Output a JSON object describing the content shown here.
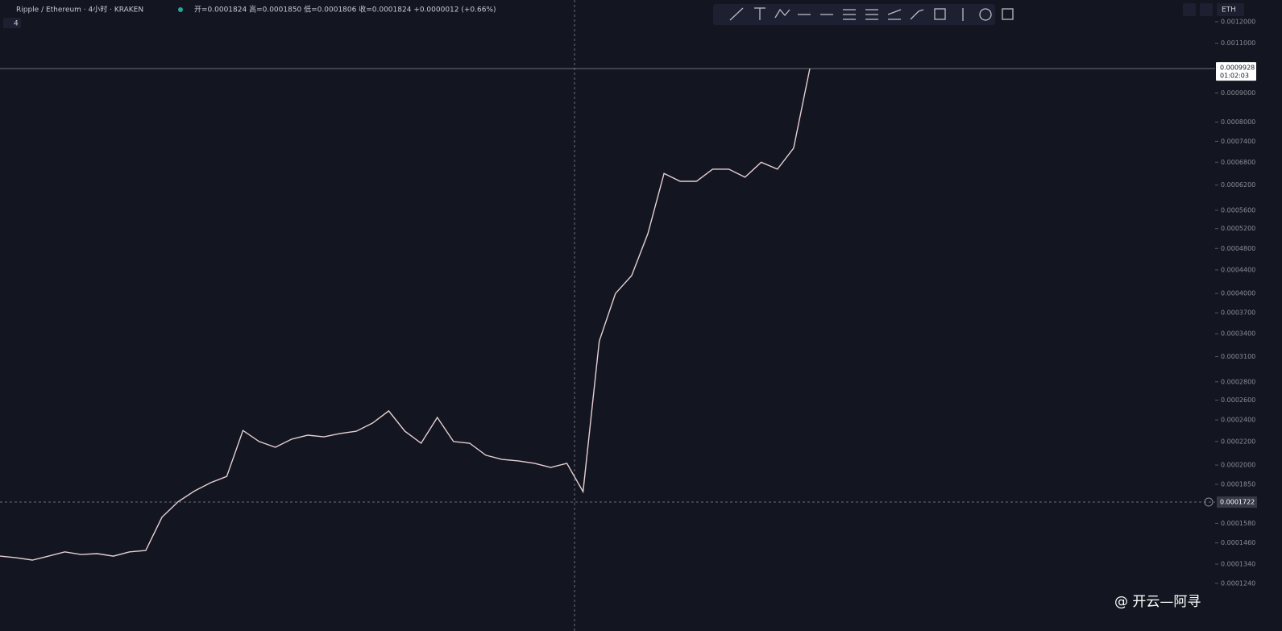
{
  "header": {
    "symbol": "Ripple / Ethereum · 4小时 · KRAKEN",
    "ohlc": "开=0.0001824 高=0.0001850 低=0.0001806 收=0.0001824 +0.0000012 (+0.66%)",
    "indicator": "4",
    "currency": "ETH"
  },
  "watermark": "@ 开云—阿寻",
  "chart_data": {
    "type": "line",
    "color": "#e6cfd3",
    "log_scale": true,
    "values": [
      0.0001384,
      0.0001375,
      0.0001362,
      0.0001384,
      0.0001408,
      0.0001393,
      0.0001398,
      0.0001384,
      0.0001408,
      0.0001416,
      0.000162,
      0.0001725,
      0.00018,
      0.0001862,
      0.000191,
      0.00023,
      0.0002199,
      0.0002149,
      0.000222,
      0.0002257,
      0.0002241,
      0.0002272,
      0.0002293,
      0.000237,
      0.0002489,
      0.0002293,
      0.0002184,
      0.0002424,
      0.0002199,
      0.0002184,
      0.0002081,
      0.0002046,
      0.0002034,
      0.0002014,
      0.0001981,
      0.0002014,
      0.0001796,
      0.00033,
      0.0004,
      0.00043,
      0.0005094,
      0.00065,
      0.0006296,
      0.0006296,
      0.0006612,
      0.0006612,
      0.00064,
      0.00068,
      0.0006612,
      0.00072,
      0.0009928
    ],
    "ylim": [
      0.000106,
      0.00131
    ],
    "yticks": [
      {
        "value": 0.0012,
        "label": "0.0012000"
      },
      {
        "value": 0.0011,
        "label": "0.0011000"
      },
      {
        "value": 0.0009,
        "label": "0.0009000"
      },
      {
        "value": 0.0008,
        "label": "0.0008000"
      },
      {
        "value": 0.00074,
        "label": "0.0007400"
      },
      {
        "value": 0.00068,
        "label": "0.0006800"
      },
      {
        "value": 0.00062,
        "label": "0.0006200"
      },
      {
        "value": 0.00056,
        "label": "0.0005600"
      },
      {
        "value": 0.00052,
        "label": "0.0005200"
      },
      {
        "value": 0.00048,
        "label": "0.0004800"
      },
      {
        "value": 0.00044,
        "label": "0.0004400"
      },
      {
        "value": 0.0004,
        "label": "0.0004000"
      },
      {
        "value": 0.00037,
        "label": "0.0003700"
      },
      {
        "value": 0.00034,
        "label": "0.0003400"
      },
      {
        "value": 0.00031,
        "label": "0.0003100"
      },
      {
        "value": 0.00028,
        "label": "0.0002800"
      },
      {
        "value": 0.00026,
        "label": "0.0002600"
      },
      {
        "value": 0.00024,
        "label": "0.0002400"
      },
      {
        "value": 0.00022,
        "label": "0.0002200"
      },
      {
        "value": 0.0002,
        "label": "0.0002000"
      },
      {
        "value": 0.000185,
        "label": "0.0001850"
      },
      {
        "value": 0.000158,
        "label": "0.0001580"
      },
      {
        "value": 0.000146,
        "label": "0.0001460"
      },
      {
        "value": 0.000134,
        "label": "0.0001340"
      },
      {
        "value": 0.000124,
        "label": "0.0001240"
      }
    ],
    "last_price": 0.0009928,
    "countdown": "01:02:03",
    "crosshair_price": 0.0001722
  }
}
